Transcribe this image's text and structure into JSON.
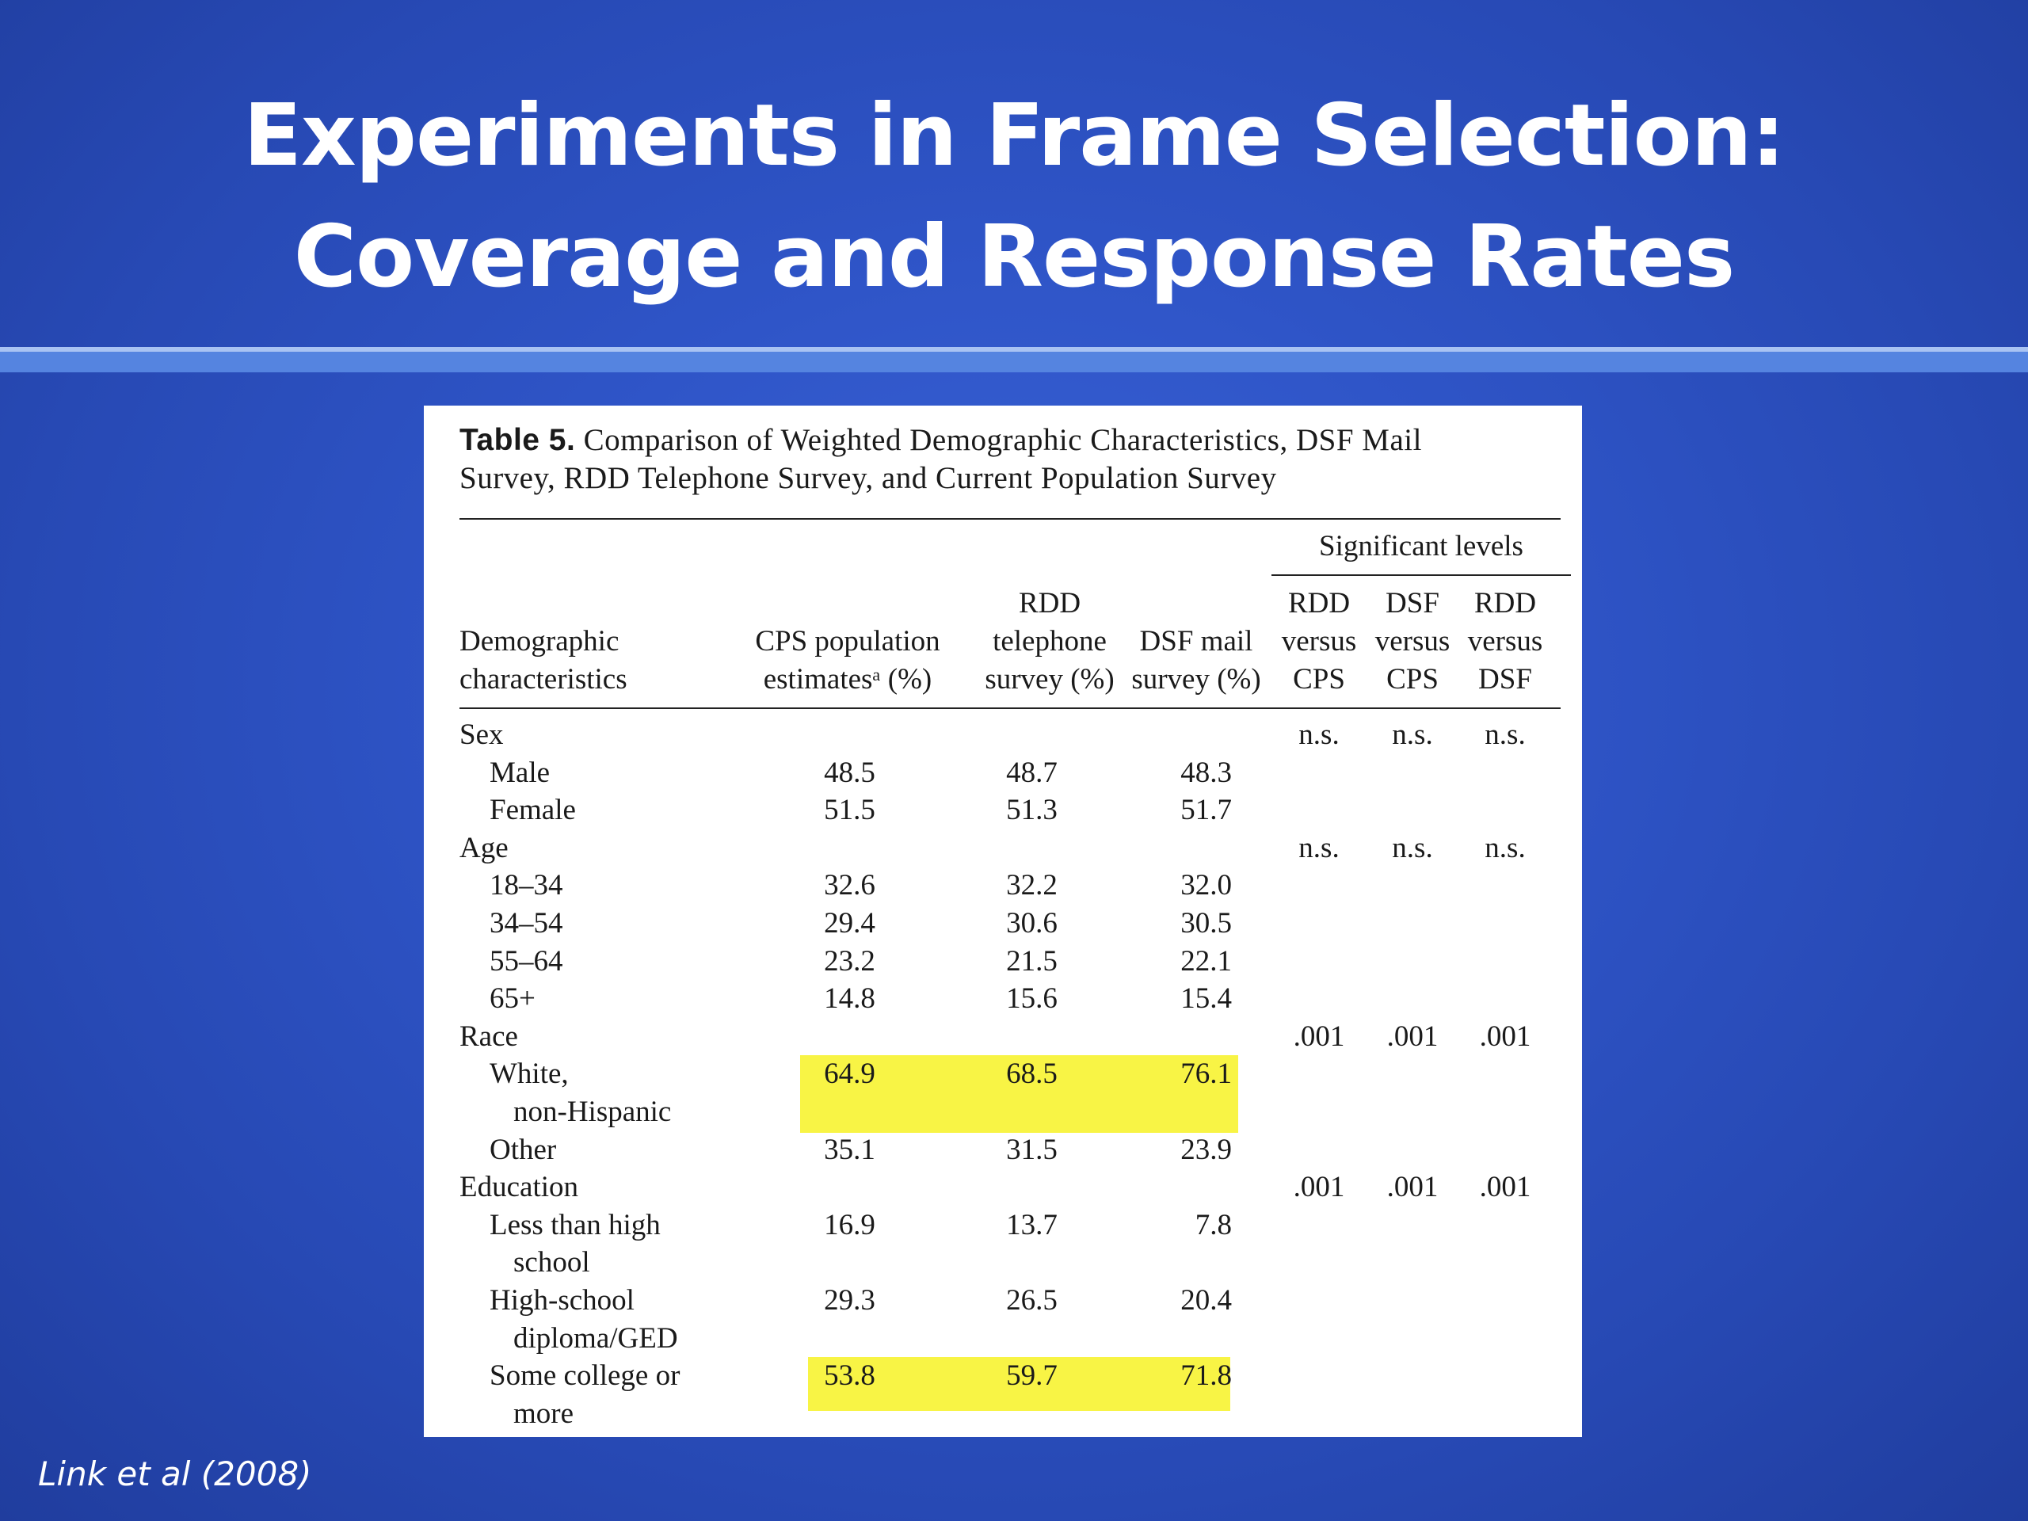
{
  "slide": {
    "title_line1": "Experiments in Frame Selection:",
    "title_line2": "Coverage and Response Rates",
    "citation": "Link et al (2008)"
  },
  "table": {
    "caption_label": "Table 5.",
    "caption_line1": "Comparison of Weighted Demographic Characteristics, DSF Mail",
    "caption_line2": "Survey, RDD Telephone Survey, and Current Population Survey",
    "sig_header": "Significant levels",
    "col_headers": {
      "demo": [
        "Demographic",
        "characteristics"
      ],
      "cps": [
        "CPS population",
        "estimatesᵃ (%)"
      ],
      "rdd": [
        "RDD",
        "telephone",
        "survey (%)"
      ],
      "dsf": [
        "DSF mail",
        "survey (%)"
      ],
      "rdd_cps": [
        "RDD",
        "versus",
        "CPS"
      ],
      "dsf_cps": [
        "DSF",
        "versus",
        "CPS"
      ],
      "rdd_dsf": [
        "RDD",
        "versus",
        "DSF"
      ]
    },
    "rows": [
      {
        "label": "Sex",
        "indent": 0,
        "cps": "",
        "rdd": "",
        "dsf": "",
        "s1": "n.s.",
        "s2": "n.s.",
        "s3": "n.s."
      },
      {
        "label": "Male",
        "indent": 1,
        "cps": "48.5",
        "rdd": "48.7",
        "dsf": "48.3",
        "s1": "",
        "s2": "",
        "s3": ""
      },
      {
        "label": "Female",
        "indent": 1,
        "cps": "51.5",
        "rdd": "51.3",
        "dsf": "51.7",
        "s1": "",
        "s2": "",
        "s3": ""
      },
      {
        "label": "Age",
        "indent": 0,
        "cps": "",
        "rdd": "",
        "dsf": "",
        "s1": "n.s.",
        "s2": "n.s.",
        "s3": "n.s."
      },
      {
        "label": "18–34",
        "indent": 1,
        "cps": "32.6",
        "rdd": "32.2",
        "dsf": "32.0",
        "s1": "",
        "s2": "",
        "s3": ""
      },
      {
        "label": "34–54",
        "indent": 1,
        "cps": "29.4",
        "rdd": "30.6",
        "dsf": "30.5",
        "s1": "",
        "s2": "",
        "s3": ""
      },
      {
        "label": "55–64",
        "indent": 1,
        "cps": "23.2",
        "rdd": "21.5",
        "dsf": "22.1",
        "s1": "",
        "s2": "",
        "s3": ""
      },
      {
        "label": "65+",
        "indent": 1,
        "cps": "14.8",
        "rdd": "15.6",
        "dsf": "15.4",
        "s1": "",
        "s2": "",
        "s3": ""
      },
      {
        "label": "Race",
        "indent": 0,
        "cps": "",
        "rdd": "",
        "dsf": "",
        "s1": ".001",
        "s2": ".001",
        "s3": ".001"
      },
      {
        "label": "White,",
        "indent": 1,
        "cps": "64.9",
        "rdd": "68.5",
        "dsf": "76.1",
        "s1": "",
        "s2": "",
        "s3": ""
      },
      {
        "label": "non-Hispanic",
        "indent": 2,
        "cps": "",
        "rdd": "",
        "dsf": "",
        "s1": "",
        "s2": "",
        "s3": ""
      },
      {
        "label": "Other",
        "indent": 1,
        "cps": "35.1",
        "rdd": "31.5",
        "dsf": "23.9",
        "s1": "",
        "s2": "",
        "s3": ""
      },
      {
        "label": "Education",
        "indent": 0,
        "cps": "",
        "rdd": "",
        "dsf": "",
        "s1": ".001",
        "s2": ".001",
        "s3": ".001"
      },
      {
        "label": "Less than high",
        "indent": 1,
        "cps": "16.9",
        "rdd": "13.7",
        "dsf": "7.8",
        "s1": "",
        "s2": "",
        "s3": ""
      },
      {
        "label": "school",
        "indent": 2,
        "cps": "",
        "rdd": "",
        "dsf": "",
        "s1": "",
        "s2": "",
        "s3": ""
      },
      {
        "label": "High-school",
        "indent": 1,
        "cps": "29.3",
        "rdd": "26.5",
        "dsf": "20.4",
        "s1": "",
        "s2": "",
        "s3": ""
      },
      {
        "label": "diploma/GED",
        "indent": 2,
        "cps": "",
        "rdd": "",
        "dsf": "",
        "s1": "",
        "s2": "",
        "s3": ""
      },
      {
        "label": "Some college or",
        "indent": 1,
        "cps": "53.8",
        "rdd": "59.7",
        "dsf": "71.8",
        "s1": "",
        "s2": "",
        "s3": ""
      },
      {
        "label": "more",
        "indent": 2,
        "cps": "",
        "rdd": "",
        "dsf": "",
        "s1": "",
        "s2": "",
        "s3": ""
      }
    ],
    "highlight_color": "#f8f445"
  }
}
